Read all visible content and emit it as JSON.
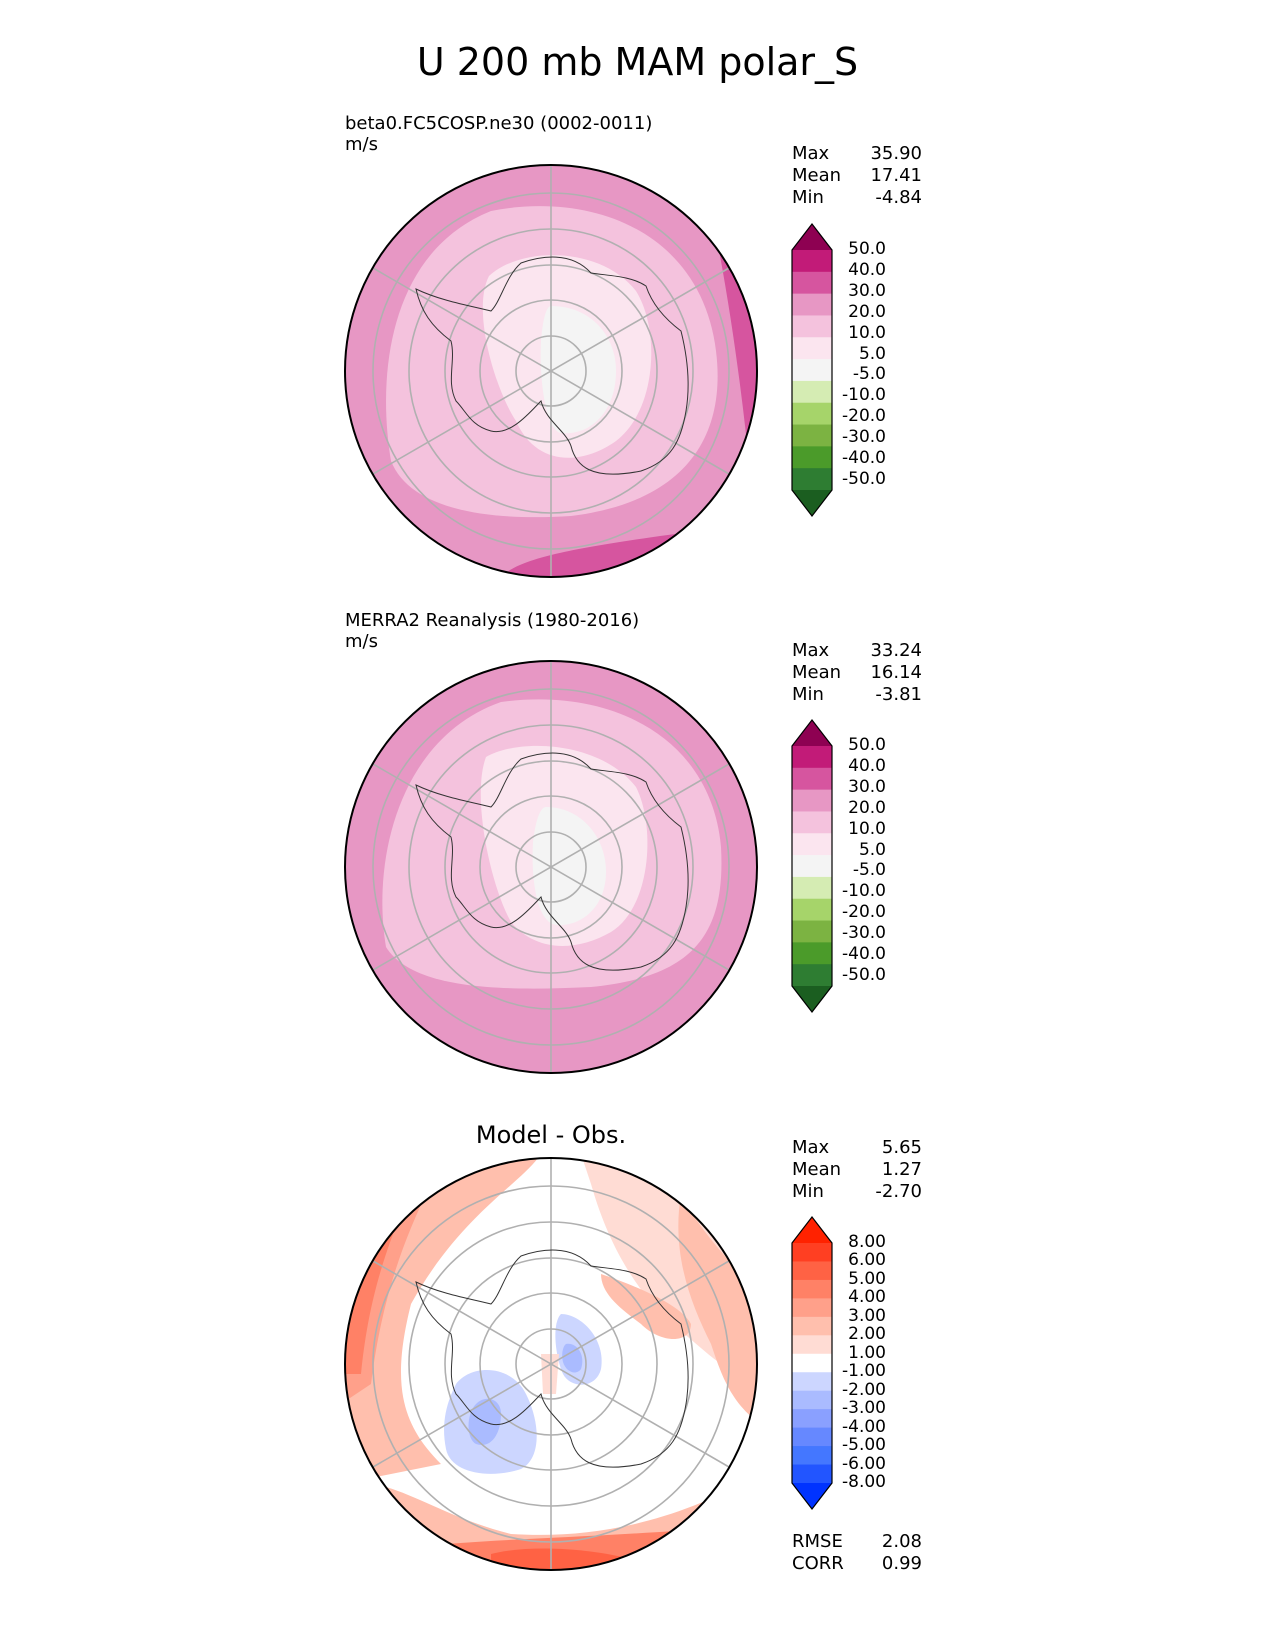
{
  "title": "U 200 mb MAM polar_S",
  "panels": [
    {
      "title_line1": "beta0.FC5COSP.ne30 (0002-0011)",
      "title_line2": "m/s",
      "stats": [
        {
          "label": "Max",
          "value": "35.90"
        },
        {
          "label": "Mean",
          "value": "17.41"
        },
        {
          "label": "Min",
          "value": "-4.84"
        }
      ],
      "colorbar_labels": [
        "50.0",
        "40.0",
        "30.0",
        "20.0",
        "10.0",
        "5.0",
        "-5.0",
        "-10.0",
        "-20.0",
        "-30.0",
        "-40.0",
        "-50.0"
      ]
    },
    {
      "title_line1": "MERRA2 Reanalysis (1980-2016)",
      "title_line2": "m/s",
      "stats": [
        {
          "label": "Max",
          "value": "33.24"
        },
        {
          "label": "Mean",
          "value": "16.14"
        },
        {
          "label": "Min",
          "value": "-3.81"
        }
      ],
      "colorbar_labels": [
        "50.0",
        "40.0",
        "30.0",
        "20.0",
        "10.0",
        "5.0",
        "-5.0",
        "-10.0",
        "-20.0",
        "-30.0",
        "-40.0",
        "-50.0"
      ]
    },
    {
      "title_center": "Model - Obs.",
      "stats": [
        {
          "label": "Max",
          "value": "5.65"
        },
        {
          "label": "Mean",
          "value": "1.27"
        },
        {
          "label": "Min",
          "value": "-2.70"
        }
      ],
      "colorbar_labels": [
        "8.00",
        "6.00",
        "5.00",
        "4.00",
        "3.00",
        "2.00",
        "1.00",
        "-1.00",
        "-2.00",
        "-3.00",
        "-4.00",
        "-5.00",
        "-6.00",
        "-8.00"
      ],
      "metrics": [
        {
          "label": "RMSE",
          "value": "2.08"
        },
        {
          "label": "CORR",
          "value": "0.99"
        }
      ]
    }
  ],
  "colors": {
    "field_scale": [
      "#1b5e20",
      "#2e7d32",
      "#4b9b2a",
      "#7cb342",
      "#a6d46a",
      "#d5ecb3",
      "#f4f4f4",
      "#fbe5ef",
      "#f4c2dd",
      "#e797c4",
      "#d6559f",
      "#c21b78",
      "#8e0152"
    ],
    "diff_scale": [
      "#0033ff",
      "#2255ff",
      "#4477ff",
      "#6688ff",
      "#8aa0ff",
      "#aabbff",
      "#ccd6ff",
      "#ffffff",
      "#ffdcd4",
      "#ffbfad",
      "#ffa08a",
      "#ff8166",
      "#ff6244",
      "#ff3f22",
      "#ff2200"
    ]
  }
}
